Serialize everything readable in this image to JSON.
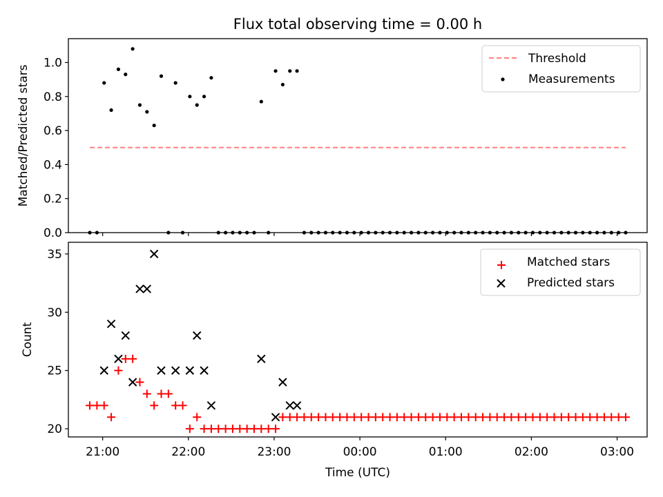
{
  "chart_data": [
    {
      "type": "scatter",
      "title": "Flux total observing time = 0.00 h",
      "ylabel": "Matched/Predicted stars",
      "ylim": [
        0,
        1.14
      ],
      "yticks": [
        "0.0",
        "0.2",
        "0.4",
        "0.6",
        "0.8",
        "1.0"
      ],
      "legend_position": "top-right",
      "series": [
        {
          "name": "Threshold",
          "style": "dashed-line",
          "color": "#ff7f7f",
          "x": [
            "20:51",
            "03:06"
          ],
          "values": [
            0.5,
            0.5
          ]
        },
        {
          "name": "Measurements",
          "style": "dot",
          "color": "#000000",
          "x": [
            "20:51",
            "20:56",
            "21:01",
            "21:06",
            "21:11",
            "21:16",
            "21:21",
            "21:26",
            "21:31",
            "21:36",
            "21:41",
            "21:46",
            "21:51",
            "21:56",
            "22:01",
            "22:06",
            "22:11",
            "22:16",
            "22:21",
            "22:26",
            "22:31",
            "22:36",
            "22:41",
            "22:46",
            "22:51",
            "22:56",
            "23:01",
            "23:06",
            "23:11",
            "23:16",
            "23:21",
            "23:26",
            "23:31",
            "23:36",
            "23:41",
            "23:46",
            "23:51",
            "23:56",
            "00:01",
            "00:06",
            "00:11",
            "00:16",
            "00:21",
            "00:26",
            "00:31",
            "00:36",
            "00:41",
            "00:46",
            "00:51",
            "00:56",
            "01:01",
            "01:06",
            "01:11",
            "01:16",
            "01:21",
            "01:26",
            "01:31",
            "01:36",
            "01:41",
            "01:46",
            "01:51",
            "01:56",
            "02:01",
            "02:06",
            "02:11",
            "02:16",
            "02:21",
            "02:26",
            "02:31",
            "02:36",
            "02:41",
            "02:46",
            "02:51",
            "02:56",
            "03:01",
            "03:06"
          ],
          "values": [
            0,
            0,
            0.88,
            0.72,
            0.96,
            0.93,
            1.08,
            0.75,
            0.71,
            0.63,
            0.92,
            0,
            0.88,
            0,
            0.8,
            0.75,
            0.8,
            0.91,
            0,
            0,
            0,
            0,
            0,
            0,
            0.77,
            0,
            0.95,
            0.87,
            0.95,
            0.95,
            0,
            0,
            0,
            0,
            0,
            0,
            0,
            0,
            0,
            0,
            0,
            0,
            0,
            0,
            0,
            0,
            0,
            0,
            0,
            0,
            0,
            0,
            0,
            0,
            0,
            0,
            0,
            0,
            0,
            0,
            0,
            0,
            0,
            0,
            0,
            0,
            0,
            0,
            0,
            0,
            0,
            0,
            0,
            0,
            0,
            0
          ]
        }
      ]
    },
    {
      "type": "scatter",
      "xlabel": "Time (UTC)",
      "ylabel": "Count",
      "ylim": [
        19.3,
        36
      ],
      "yticks": [
        "20",
        "25",
        "30",
        "35"
      ],
      "xticks": [
        "21:00",
        "22:00",
        "23:00",
        "00:00",
        "01:00",
        "02:00",
        "03:00"
      ],
      "legend_position": "top-right",
      "series": [
        {
          "name": "Matched stars",
          "style": "plus",
          "color": "#ff0000",
          "x": [
            "20:51",
            "20:56",
            "21:01",
            "21:06",
            "21:11",
            "21:16",
            "21:21",
            "21:26",
            "21:31",
            "21:36",
            "21:41",
            "21:46",
            "21:51",
            "21:56",
            "22:01",
            "22:06",
            "22:11",
            "22:16",
            "22:21",
            "22:26",
            "22:31",
            "22:36",
            "22:41",
            "22:46",
            "22:51",
            "22:56",
            "23:01",
            "23:06",
            "23:11",
            "23:16",
            "23:21",
            "23:26",
            "23:31",
            "23:36",
            "23:41",
            "23:46",
            "23:51",
            "23:56",
            "00:01",
            "00:06",
            "00:11",
            "00:16",
            "00:21",
            "00:26",
            "00:31",
            "00:36",
            "00:41",
            "00:46",
            "00:51",
            "00:56",
            "01:01",
            "01:06",
            "01:11",
            "01:16",
            "01:21",
            "01:26",
            "01:31",
            "01:36",
            "01:41",
            "01:46",
            "01:51",
            "01:56",
            "02:01",
            "02:06",
            "02:11",
            "02:16",
            "02:21",
            "02:26",
            "02:31",
            "02:36",
            "02:41",
            "02:46",
            "02:51",
            "02:56",
            "03:01",
            "03:06"
          ],
          "values": [
            22,
            22,
            22,
            21,
            25,
            26,
            26,
            24,
            23,
            22,
            23,
            23,
            22,
            22,
            20,
            21,
            20,
            20,
            20,
            20,
            20,
            20,
            20,
            20,
            20,
            20,
            20,
            21,
            21,
            21,
            21,
            21,
            21,
            21,
            21,
            21,
            21,
            21,
            21,
            21,
            21,
            21,
            21,
            21,
            21,
            21,
            21,
            21,
            21,
            21,
            21,
            21,
            21,
            21,
            21,
            21,
            21,
            21,
            21,
            21,
            21,
            21,
            21,
            21,
            21,
            21,
            21,
            21,
            21,
            21,
            21,
            21,
            21,
            21,
            21,
            21
          ]
        },
        {
          "name": "Predicted stars",
          "style": "x",
          "color": "#000000",
          "x": [
            "21:01",
            "21:06",
            "21:11",
            "21:16",
            "21:21",
            "21:26",
            "21:31",
            "21:36",
            "21:41",
            "21:51",
            "22:01",
            "22:06",
            "22:11",
            "22:16",
            "22:51",
            "23:01",
            "23:06",
            "23:11",
            "23:16"
          ],
          "values": [
            25,
            29,
            26,
            28,
            24,
            32,
            32,
            35,
            25,
            25,
            25,
            28,
            25,
            22,
            26,
            21,
            24,
            22,
            22
          ]
        }
      ]
    }
  ]
}
